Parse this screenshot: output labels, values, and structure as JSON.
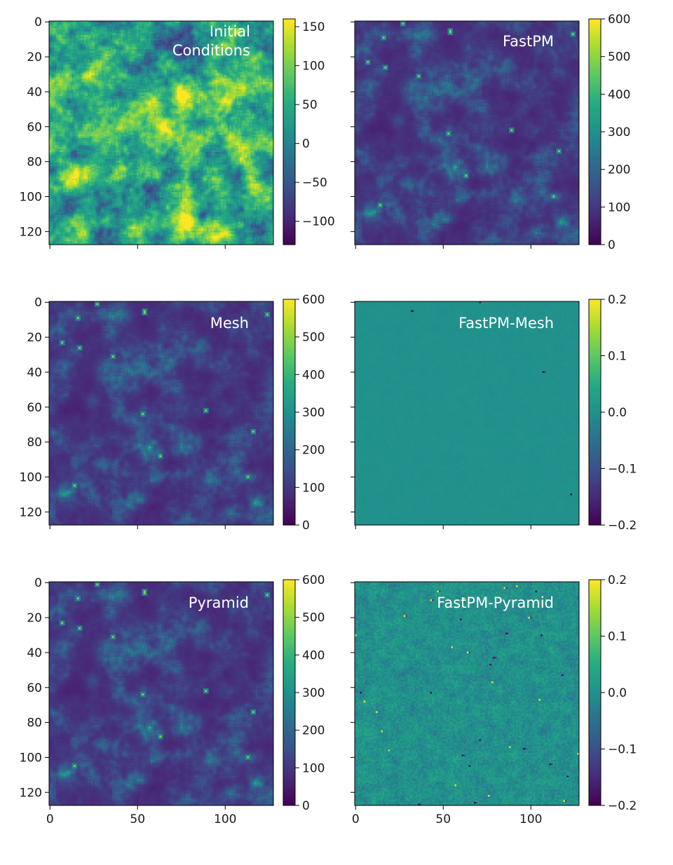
{
  "chart_data": [
    {
      "type": "heatmap",
      "label": "Initial\nConditions",
      "pattern": "initial",
      "colormap": "viridis",
      "grid_size": 128,
      "x_ticks": [
        0,
        50,
        100
      ],
      "y_ticks": [
        0,
        20,
        40,
        60,
        80,
        100,
        120
      ],
      "show_x_tick_labels": false,
      "show_y_tick_labels": true,
      "colorbar": {
        "min": -130,
        "max": 160,
        "ticks": [
          150,
          100,
          50,
          0,
          -50,
          -100
        ],
        "tick_labels": [
          "150",
          "100",
          "50",
          "0",
          "−50",
          "−100"
        ]
      }
    },
    {
      "type": "heatmap",
      "label": "FastPM",
      "pattern": "density",
      "colormap": "viridis",
      "grid_size": 128,
      "x_ticks": [
        0,
        50,
        100
      ],
      "y_ticks": [
        0,
        20,
        40,
        60,
        80,
        100,
        120
      ],
      "show_x_tick_labels": false,
      "show_y_tick_labels": false,
      "colorbar": {
        "min": 0,
        "max": 600,
        "ticks": [
          600,
          500,
          400,
          300,
          200,
          100,
          0
        ],
        "tick_labels": [
          "600",
          "500",
          "400",
          "300",
          "200",
          "100",
          "0"
        ]
      }
    },
    {
      "type": "heatmap",
      "label": "Mesh",
      "pattern": "density",
      "colormap": "viridis",
      "grid_size": 128,
      "x_ticks": [
        0,
        50,
        100
      ],
      "y_ticks": [
        0,
        20,
        40,
        60,
        80,
        100,
        120
      ],
      "show_x_tick_labels": false,
      "show_y_tick_labels": true,
      "colorbar": {
        "min": 0,
        "max": 600,
        "ticks": [
          600,
          500,
          400,
          300,
          200,
          100,
          0
        ],
        "tick_labels": [
          "600",
          "500",
          "400",
          "300",
          "200",
          "100",
          "0"
        ]
      }
    },
    {
      "type": "heatmap",
      "label": "FastPM-Mesh",
      "pattern": "residual-small",
      "colormap": "viridis",
      "grid_size": 128,
      "x_ticks": [
        0,
        50,
        100
      ],
      "y_ticks": [
        0,
        20,
        40,
        60,
        80,
        100,
        120
      ],
      "show_x_tick_labels": false,
      "show_y_tick_labels": false,
      "colorbar": {
        "min": -0.2,
        "max": 0.2,
        "ticks": [
          0.2,
          0.1,
          0.0,
          -0.1,
          -0.2
        ],
        "tick_labels": [
          "0.2",
          "0.1",
          "0.0",
          "−0.1",
          "−0.2"
        ]
      }
    },
    {
      "type": "heatmap",
      "label": "Pyramid",
      "pattern": "density",
      "colormap": "viridis",
      "grid_size": 128,
      "x_ticks": [
        0,
        50,
        100
      ],
      "y_ticks": [
        0,
        20,
        40,
        60,
        80,
        100,
        120
      ],
      "show_x_tick_labels": true,
      "show_y_tick_labels": true,
      "colorbar": {
        "min": 0,
        "max": 600,
        "ticks": [
          600,
          500,
          400,
          300,
          200,
          100,
          0
        ],
        "tick_labels": [
          "600",
          "500",
          "400",
          "300",
          "200",
          "100",
          "0"
        ]
      }
    },
    {
      "type": "heatmap",
      "label": "FastPM-Pyramid",
      "pattern": "residual-large",
      "colormap": "viridis",
      "grid_size": 128,
      "x_ticks": [
        0,
        50,
        100
      ],
      "y_ticks": [
        0,
        20,
        40,
        60,
        80,
        100,
        120
      ],
      "show_x_tick_labels": true,
      "show_y_tick_labels": false,
      "colorbar": {
        "min": -0.2,
        "max": 0.2,
        "ticks": [
          0.2,
          0.1,
          0.0,
          -0.1,
          -0.2
        ],
        "tick_labels": [
          "0.2",
          "0.1",
          "0.0",
          "−0.1",
          "−0.2"
        ]
      }
    }
  ]
}
